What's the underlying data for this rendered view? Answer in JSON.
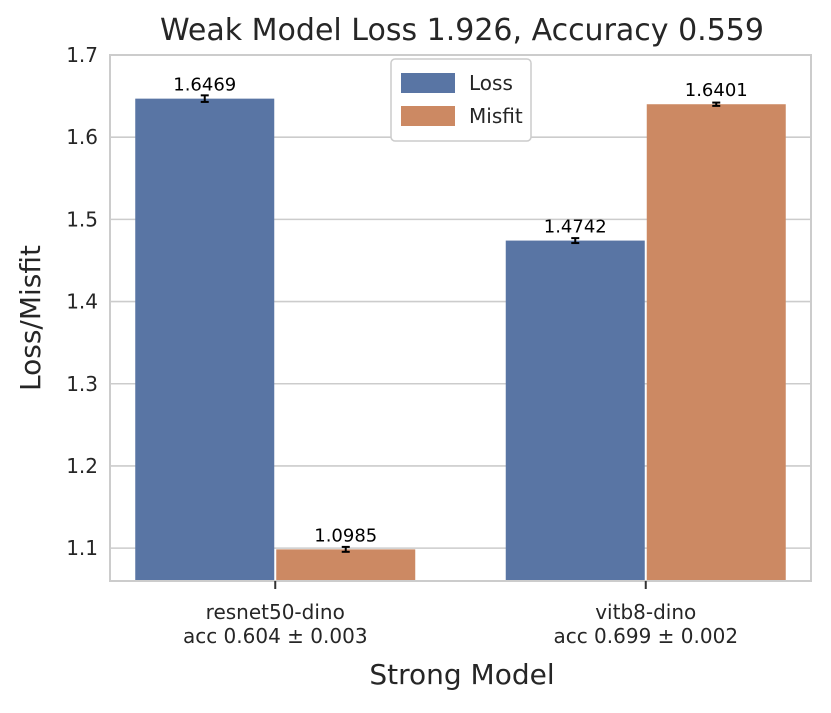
{
  "chart_data": {
    "type": "bar",
    "title": "Weak Model Loss 1.926, Accuracy 0.559",
    "xlabel": "Strong Model",
    "ylabel": "Loss/Misfit",
    "ylim": [
      1.06,
      1.7
    ],
    "yticks": [
      "1.1",
      "1.2",
      "1.3",
      "1.4",
      "1.5",
      "1.6",
      "1.7"
    ],
    "categories": [
      {
        "name": "resnet50-dino",
        "acc": "acc 0.604 ± 0.003"
      },
      {
        "name": "vitb8-dino",
        "acc": "acc 0.699 ± 0.002"
      }
    ],
    "series": [
      {
        "name": "Loss",
        "color": "#5975a4",
        "values": [
          1.6469,
          1.4742
        ],
        "errors": [
          0.004,
          0.003
        ],
        "labels": [
          "1.6469",
          "1.4742"
        ]
      },
      {
        "name": "Misfit",
        "color": "#cc8963",
        "values": [
          1.0985,
          1.6401
        ],
        "errors": [
          0.003,
          0.002
        ],
        "labels": [
          "1.0985",
          "1.6401"
        ]
      }
    ],
    "grid": true,
    "legend": "top-center"
  }
}
